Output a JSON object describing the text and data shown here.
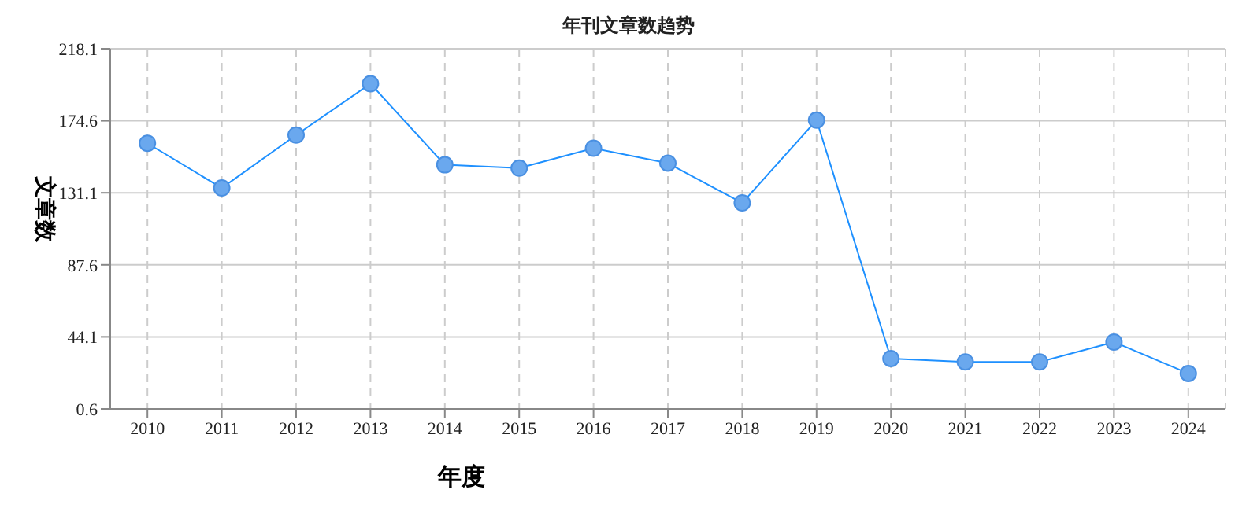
{
  "chart_data": {
    "type": "line",
    "title": "年刊文章数趋势",
    "xlabel": "年度",
    "ylabel": "文章数",
    "categories": [
      "2010",
      "2011",
      "2012",
      "2013",
      "2014",
      "2015",
      "2016",
      "2017",
      "2018",
      "2019",
      "2020",
      "2021",
      "2022",
      "2023",
      "2024"
    ],
    "series": [
      {
        "color": "#1e90ff",
        "values": [
          161,
          134,
          166,
          197,
          148,
          146,
          158,
          149,
          125,
          175,
          31,
          29,
          29,
          41,
          22
        ]
      }
    ],
    "ylim": [
      0.6,
      218.1
    ],
    "yticks": [
      0.6,
      44.1,
      87.6,
      131.1,
      174.6,
      218.1
    ],
    "grid": true,
    "marker": "circle",
    "line_style": "solid",
    "legend": false
  }
}
